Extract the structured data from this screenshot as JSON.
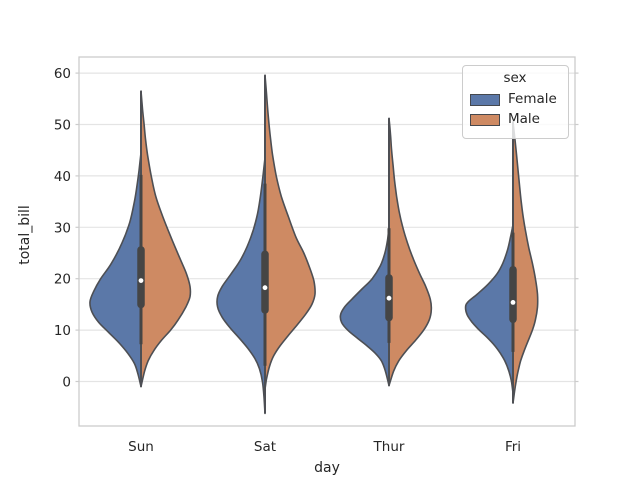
{
  "chart_data": {
    "type": "violin",
    "orientation": "vertical",
    "split": true,
    "title": "",
    "xlabel": "day",
    "ylabel": "total_bill",
    "categories": [
      "Sun",
      "Sat",
      "Thur",
      "Fri"
    ],
    "yticks": [
      0,
      10,
      20,
      30,
      40,
      50,
      60
    ],
    "ylim": [
      -8.6,
      62.9
    ],
    "grid": "horizontal",
    "legend": {
      "title": "sex",
      "position": "upper right",
      "items": [
        {
          "label": "Female",
          "color": "#5B78A8"
        },
        {
          "label": "Male",
          "color": "#CE8A63"
        }
      ]
    },
    "palette": {
      "female_fill": "#5B78A8",
      "male_fill": "#CE8A63",
      "violin_edge": "#4d4f54",
      "box_color": "#454545",
      "median_dot": "#ffffff",
      "grid_color": "#e4e4e4",
      "spine_color": "#cccccc",
      "text_color": "#262626"
    },
    "groups": [
      {
        "day": "Sun",
        "box": {
          "whisker_lo": 7.25,
          "q1": 14.99,
          "median": 19.63,
          "q3": 25.6,
          "whisker_hi": 40.2
        },
        "female_profile": [
          [
            44.5,
            0
          ],
          [
            41,
            0.04
          ],
          [
            38,
            0.08
          ],
          [
            35,
            0.13
          ],
          [
            31,
            0.22
          ],
          [
            27,
            0.37
          ],
          [
            23,
            0.58
          ],
          [
            20,
            0.79
          ],
          [
            17.5,
            0.93
          ],
          [
            15.5,
            1.0
          ],
          [
            13.5,
            0.96
          ],
          [
            11.5,
            0.83
          ],
          [
            9.5,
            0.63
          ],
          [
            7.5,
            0.43
          ],
          [
            5.5,
            0.26
          ],
          [
            3.5,
            0.13
          ],
          [
            1.5,
            0.06
          ],
          [
            -1,
            0
          ]
        ],
        "male_profile": [
          [
            56.5,
            0
          ],
          [
            53,
            0.03
          ],
          [
            50,
            0.06
          ],
          [
            47,
            0.09
          ],
          [
            44,
            0.13
          ],
          [
            40,
            0.2
          ],
          [
            36,
            0.29
          ],
          [
            32,
            0.43
          ],
          [
            28,
            0.59
          ],
          [
            24,
            0.76
          ],
          [
            21,
            0.89
          ],
          [
            18.5,
            0.96
          ],
          [
            16.5,
            0.96
          ],
          [
            14.5,
            0.88
          ],
          [
            12,
            0.73
          ],
          [
            10,
            0.58
          ],
          [
            8,
            0.4
          ],
          [
            6,
            0.25
          ],
          [
            4,
            0.14
          ],
          [
            2,
            0.07
          ],
          [
            -1,
            0
          ]
        ]
      },
      {
        "day": "Sat",
        "box": {
          "whisker_lo": 3.07,
          "q1": 13.91,
          "median": 18.24,
          "q3": 24.74,
          "whisker_hi": 38.5
        },
        "female_profile": [
          [
            43.5,
            0
          ],
          [
            40,
            0.04
          ],
          [
            36,
            0.09
          ],
          [
            32,
            0.16
          ],
          [
            28,
            0.28
          ],
          [
            24,
            0.46
          ],
          [
            21,
            0.66
          ],
          [
            18.5,
            0.84
          ],
          [
            16.5,
            0.93
          ],
          [
            14.5,
            0.93
          ],
          [
            12.5,
            0.84
          ],
          [
            10.5,
            0.69
          ],
          [
            8.5,
            0.51
          ],
          [
            6.5,
            0.34
          ],
          [
            4.5,
            0.2
          ],
          [
            2.5,
            0.11
          ],
          [
            0,
            0.05
          ],
          [
            -3,
            0.02
          ],
          [
            -6.2,
            0
          ]
        ],
        "male_profile": [
          [
            59.6,
            0
          ],
          [
            56,
            0.03
          ],
          [
            52,
            0.06
          ],
          [
            48,
            0.1
          ],
          [
            44,
            0.15
          ],
          [
            40,
            0.22
          ],
          [
            36,
            0.32
          ],
          [
            32,
            0.46
          ],
          [
            28,
            0.61
          ],
          [
            25,
            0.76
          ],
          [
            22,
            0.88
          ],
          [
            19.5,
            0.96
          ],
          [
            17,
            0.98
          ],
          [
            15,
            0.92
          ],
          [
            13,
            0.79
          ],
          [
            11,
            0.63
          ],
          [
            9,
            0.46
          ],
          [
            7,
            0.3
          ],
          [
            5,
            0.17
          ],
          [
            3,
            0.09
          ],
          [
            0.5,
            0.03
          ],
          [
            -1.5,
            0
          ]
        ]
      },
      {
        "day": "Thur",
        "box": {
          "whisker_lo": 7.51,
          "q1": 12.44,
          "median": 16.2,
          "q3": 20.16,
          "whisker_hi": 29.8
        },
        "female_profile": [
          [
            30,
            0
          ],
          [
            27.5,
            0.03
          ],
          [
            25,
            0.08
          ],
          [
            22.5,
            0.17
          ],
          [
            20,
            0.33
          ],
          [
            18,
            0.53
          ],
          [
            16,
            0.73
          ],
          [
            14.5,
            0.87
          ],
          [
            13,
            0.95
          ],
          [
            11.5,
            0.93
          ],
          [
            10,
            0.81
          ],
          [
            8.5,
            0.63
          ],
          [
            7,
            0.44
          ],
          [
            5.5,
            0.27
          ],
          [
            4,
            0.15
          ],
          [
            2,
            0.07
          ],
          [
            -0.8,
            0
          ]
        ],
        "male_profile": [
          [
            51.2,
            0
          ],
          [
            48,
            0.03
          ],
          [
            45,
            0.05
          ],
          [
            42,
            0.08
          ],
          [
            39,
            0.11
          ],
          [
            36,
            0.15
          ],
          [
            33,
            0.2
          ],
          [
            30,
            0.27
          ],
          [
            27,
            0.36
          ],
          [
            24,
            0.47
          ],
          [
            21,
            0.6
          ],
          [
            18.5,
            0.72
          ],
          [
            16,
            0.81
          ],
          [
            14,
            0.83
          ],
          [
            12,
            0.79
          ],
          [
            10,
            0.68
          ],
          [
            8,
            0.52
          ],
          [
            6,
            0.34
          ],
          [
            4,
            0.19
          ],
          [
            2,
            0.09
          ],
          [
            -0.8,
            0
          ]
        ]
      },
      {
        "day": "Fri",
        "box": {
          "whisker_lo": 5.75,
          "q1": 12.1,
          "median": 15.38,
          "q3": 21.75,
          "whisker_hi": 28.97
        },
        "female_profile": [
          [
            30.5,
            0
          ],
          [
            28,
            0.05
          ],
          [
            25.5,
            0.11
          ],
          [
            23,
            0.2
          ],
          [
            21,
            0.31
          ],
          [
            19,
            0.48
          ],
          [
            17,
            0.7
          ],
          [
            15.5,
            0.88
          ],
          [
            14.5,
            0.93
          ],
          [
            13,
            0.9
          ],
          [
            11.5,
            0.8
          ],
          [
            10,
            0.66
          ],
          [
            8.5,
            0.5
          ],
          [
            7,
            0.36
          ],
          [
            5.5,
            0.25
          ],
          [
            4,
            0.16
          ],
          [
            2,
            0.08
          ],
          [
            0,
            0.03
          ],
          [
            -2.2,
            0
          ]
        ],
        "male_profile": [
          [
            50.5,
            0
          ],
          [
            47,
            0.04
          ],
          [
            44,
            0.07
          ],
          [
            41,
            0.1
          ],
          [
            38,
            0.13
          ],
          [
            35,
            0.16
          ],
          [
            32,
            0.2
          ],
          [
            29,
            0.25
          ],
          [
            26,
            0.31
          ],
          [
            23,
            0.38
          ],
          [
            20,
            0.44
          ],
          [
            17,
            0.48
          ],
          [
            14.5,
            0.48
          ],
          [
            12,
            0.44
          ],
          [
            10,
            0.38
          ],
          [
            8,
            0.3
          ],
          [
            6,
            0.22
          ],
          [
            4,
            0.15
          ],
          [
            2,
            0.1
          ],
          [
            0,
            0.06
          ],
          [
            -2,
            0.03
          ],
          [
            -4.2,
            0
          ]
        ]
      }
    ]
  }
}
